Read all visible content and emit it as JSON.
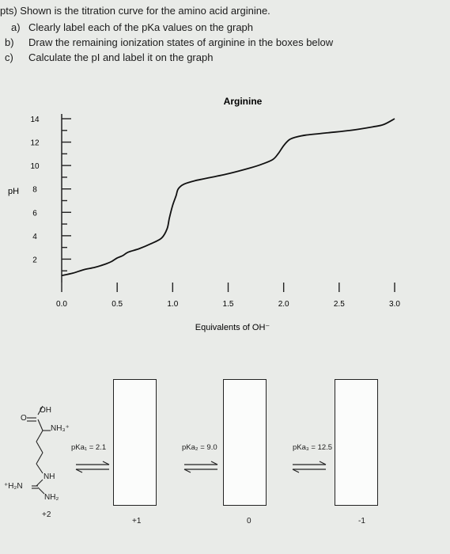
{
  "questions": {
    "intro": "pts) Shown is the titration curve for the amino acid arginine.",
    "a_marker": "a)",
    "a_text": "Clearly label each of the pKa values on the graph",
    "b_marker": "b)",
    "b_text": "Draw the remaining ionization states of arginine in the boxes below",
    "c_marker": "c)",
    "c_text": "Calculate the pI and label it on the graph"
  },
  "chart_data": {
    "type": "line",
    "title": "Arginine",
    "xlabel": "Equivalents of OH⁻",
    "ylabel": "pH",
    "xlim": [
      0,
      3.0
    ],
    "ylim": [
      0,
      14
    ],
    "x_ticks": [
      "0.0",
      "0.5",
      "1.0",
      "1.5",
      "2.0",
      "2.5",
      "3.0"
    ],
    "y_ticks": [
      "2",
      "4",
      "6",
      "8",
      "10",
      "12",
      "14"
    ],
    "x": [
      0.0,
      0.1,
      0.2,
      0.3,
      0.4,
      0.45,
      0.5,
      0.55,
      0.6,
      0.7,
      0.8,
      0.9,
      0.95,
      0.97,
      1.0,
      1.03,
      1.05,
      1.1,
      1.2,
      1.3,
      1.5,
      1.7,
      1.8,
      1.9,
      1.95,
      2.0,
      2.05,
      2.1,
      2.2,
      2.4,
      2.6,
      2.8,
      2.9,
      3.0
    ],
    "y": [
      0.6,
      0.8,
      1.1,
      1.3,
      1.6,
      1.8,
      2.1,
      2.3,
      2.6,
      2.9,
      3.3,
      3.8,
      4.6,
      5.5,
      6.6,
      7.4,
      8.0,
      8.4,
      8.7,
      8.9,
      9.3,
      9.8,
      10.1,
      10.5,
      11.0,
      11.7,
      12.2,
      12.4,
      12.6,
      12.8,
      13.0,
      13.3,
      13.5,
      14.0
    ]
  },
  "structure": {
    "oh": "OH",
    "o": "O",
    "nh3": "NH₃⁺",
    "nh": "NH",
    "h2n": "⁺H₂N",
    "nh2": "NH₂"
  },
  "equilibria": [
    {
      "pka": "pKa₁ = 2.1"
    },
    {
      "pka": "pKa₂ = 9.0"
    },
    {
      "pka": "pKa₃ = 12.5"
    }
  ],
  "charges": [
    "+2",
    "+1",
    "0",
    "-1"
  ]
}
